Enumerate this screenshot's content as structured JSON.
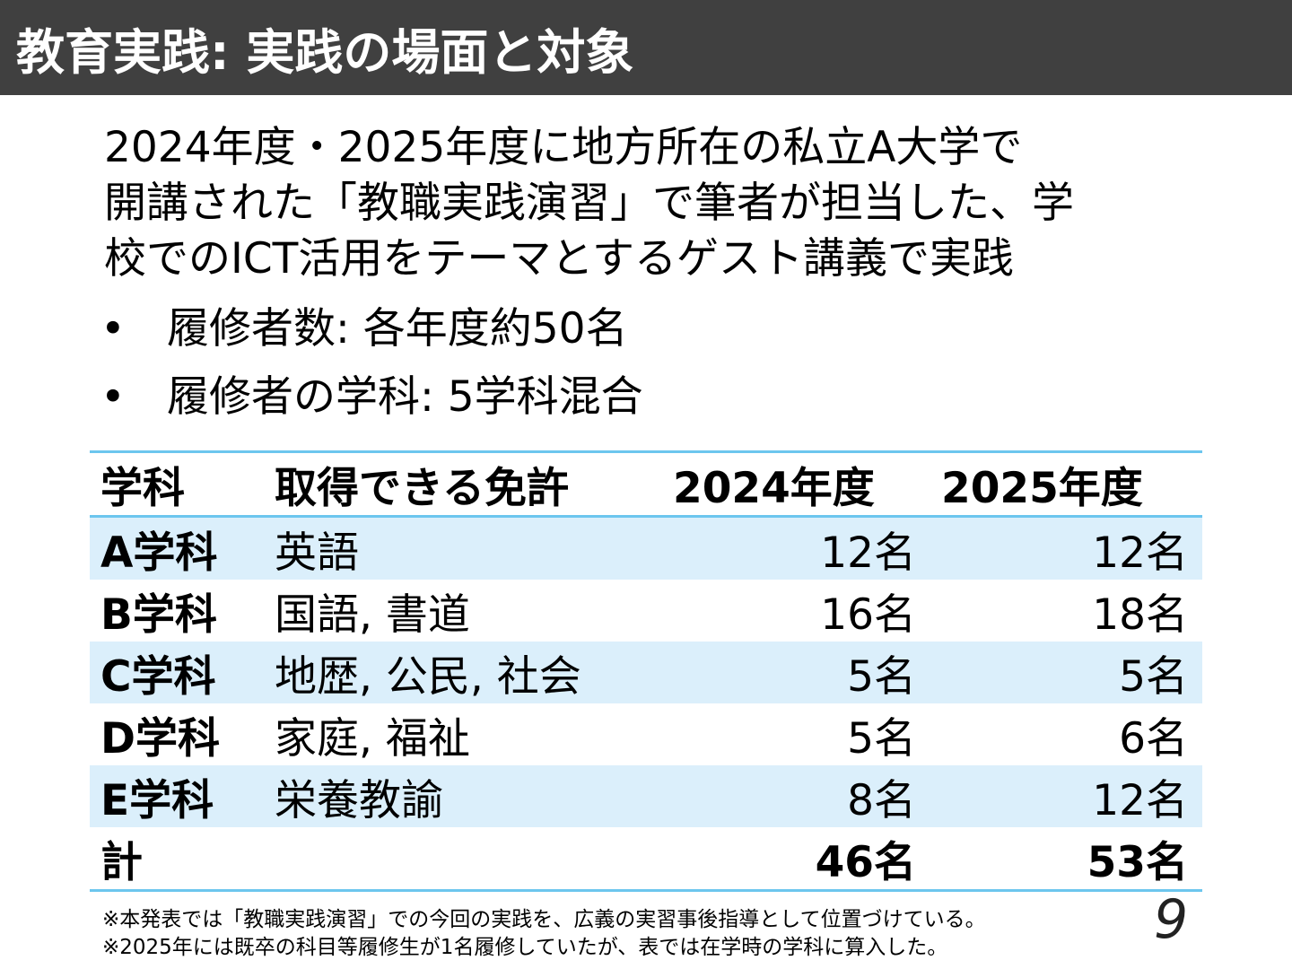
{
  "header": {
    "title": "教育実践: 実践の場面と対象"
  },
  "intro": {
    "lines": [
      "2024年度・2025年度に地方所在の私立A大学で",
      "開講された「教職実践演習」で筆者が担当した、学",
      "校でのICT活用をテーマとするゲスト講義で実践"
    ]
  },
  "bullets": [
    {
      "symbol": "•",
      "text": "履修者数: 各年度約50名"
    },
    {
      "symbol": "•",
      "text": "履修者の学科: 5学科混合"
    }
  ],
  "table": {
    "headers": [
      "学科",
      "取得できる免許",
      "2024年度",
      "2025年度"
    ],
    "rows": [
      {
        "dept": "A学科",
        "license": "英語",
        "y2024": "12名",
        "y2025": "12名"
      },
      {
        "dept": "B学科",
        "license": "国語, 書道",
        "y2024": "16名",
        "y2025": "18名"
      },
      {
        "dept": "C学科",
        "license": "地歴, 公民, 社会",
        "y2024": "5名",
        "y2025": "5名"
      },
      {
        "dept": "D学科",
        "license": "家庭, 福祉",
        "y2024": "5名",
        "y2025": "6名"
      },
      {
        "dept": "E学科",
        "license": "栄養教諭",
        "y2024": "8名",
        "y2025": "12名"
      }
    ],
    "total": {
      "label": "計",
      "y2024": "46名",
      "y2025": "53名"
    }
  },
  "notes": [
    "※本発表では「教職実践演習」での今回の実践を、広義の実習事後指導として位置づけている。",
    "※2025年には既卒の科目等履修生が1名履修していたが、表では在学時の学科に算入した。"
  ],
  "page_number": "9",
  "colors": {
    "header_bg": "#404040",
    "table_rule": "#6cc6ee",
    "row_stripe": "#dbeffb"
  }
}
